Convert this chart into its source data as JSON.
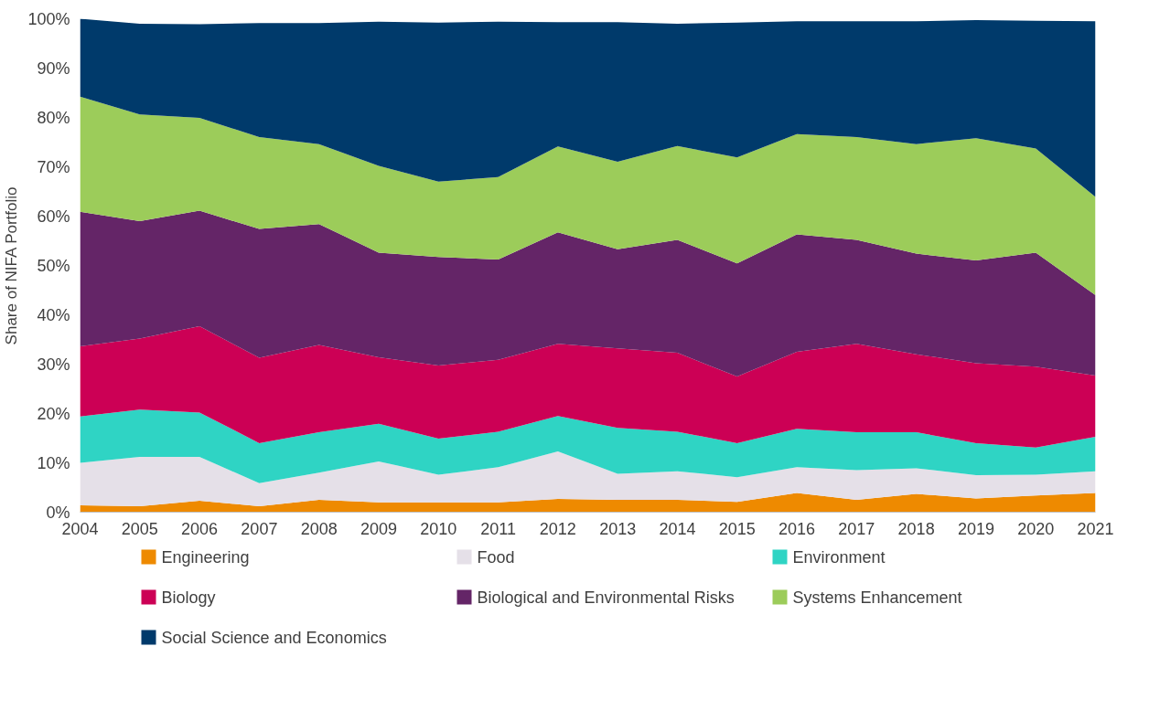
{
  "chart_data": {
    "type": "area",
    "stacked": true,
    "ylabel": "Share of NIFA Portfolio",
    "x": [
      2004,
      2005,
      2006,
      2007,
      2008,
      2009,
      2010,
      2011,
      2012,
      2013,
      2014,
      2015,
      2016,
      2017,
      2018,
      2019,
      2020,
      2021
    ],
    "xlim": [
      2004,
      2021
    ],
    "xticks": [
      2004,
      2005,
      2006,
      2007,
      2008,
      2009,
      2010,
      2011,
      2012,
      2013,
      2014,
      2015,
      2016,
      2017,
      2018,
      2019,
      2020,
      2021
    ],
    "ylim": [
      0,
      100
    ],
    "yticks": [
      {
        "value": 0,
        "label": "0%"
      },
      {
        "value": 10,
        "label": "10%"
      },
      {
        "value": 20,
        "label": "20%"
      },
      {
        "value": 30,
        "label": "30%"
      },
      {
        "value": 40,
        "label": "40%"
      },
      {
        "value": 50,
        "label": "50%"
      },
      {
        "value": 60,
        "label": "60%"
      },
      {
        "value": 70,
        "label": "70%"
      },
      {
        "value": 80,
        "label": "80%"
      },
      {
        "value": 90,
        "label": "90%"
      },
      {
        "value": 100,
        "label": "100%"
      }
    ],
    "grid": false,
    "legend": "bottom",
    "series": [
      {
        "name": "Engineering",
        "color": "#ee8a00",
        "values": [
          1.4,
          1.2,
          2.3,
          1.2,
          2.5,
          2.0,
          2.0,
          2.0,
          2.7,
          2.5,
          2.5,
          2.1,
          3.9,
          2.5,
          3.7,
          2.8,
          3.4,
          3.9
        ]
      },
      {
        "name": "Food",
        "color": "#e5e0e8",
        "values": [
          8.6,
          10.0,
          8.9,
          4.7,
          5.5,
          8.3,
          5.6,
          7.1,
          9.6,
          5.3,
          5.8,
          5.0,
          5.2,
          6.0,
          5.2,
          4.7,
          4.2,
          4.4
        ]
      },
      {
        "name": "Environment",
        "color": "#2fd4c4",
        "values": [
          9.4,
          9.6,
          9.0,
          8.1,
          8.2,
          7.6,
          7.3,
          7.2,
          7.2,
          9.3,
          8.0,
          6.9,
          7.8,
          7.7,
          7.3,
          6.5,
          5.5,
          7.0
        ]
      },
      {
        "name": "Biology",
        "color": "#cc0055",
        "values": [
          14.2,
          14.4,
          17.5,
          17.3,
          17.7,
          13.5,
          14.8,
          14.6,
          14.6,
          16.1,
          16.0,
          13.5,
          15.6,
          17.9,
          15.8,
          16.2,
          16.4,
          12.4
        ]
      },
      {
        "name": "Biological and Environmental Risks",
        "color": "#642567",
        "values": [
          27.3,
          23.8,
          23.4,
          26.1,
          24.5,
          21.2,
          22.0,
          20.3,
          22.6,
          20.1,
          22.9,
          22.9,
          23.8,
          21.1,
          20.4,
          20.8,
          23.1,
          16.3
        ]
      },
      {
        "name": "Systems Enhancement",
        "color": "#9ccc5a",
        "values": [
          23.3,
          21.6,
          18.8,
          18.6,
          16.2,
          17.6,
          15.3,
          16.7,
          17.4,
          17.7,
          19.0,
          21.5,
          20.3,
          20.8,
          22.2,
          24.8,
          21.1,
          19.9
        ]
      },
      {
        "name": "Social Science and Economics",
        "color": "#003a6b",
        "values": [
          15.8,
          18.4,
          19.0,
          23.1,
          24.5,
          29.2,
          32.2,
          31.5,
          25.2,
          28.3,
          24.8,
          27.3,
          22.9,
          23.5,
          24.9,
          23.9,
          25.9,
          35.6
        ]
      }
    ]
  }
}
